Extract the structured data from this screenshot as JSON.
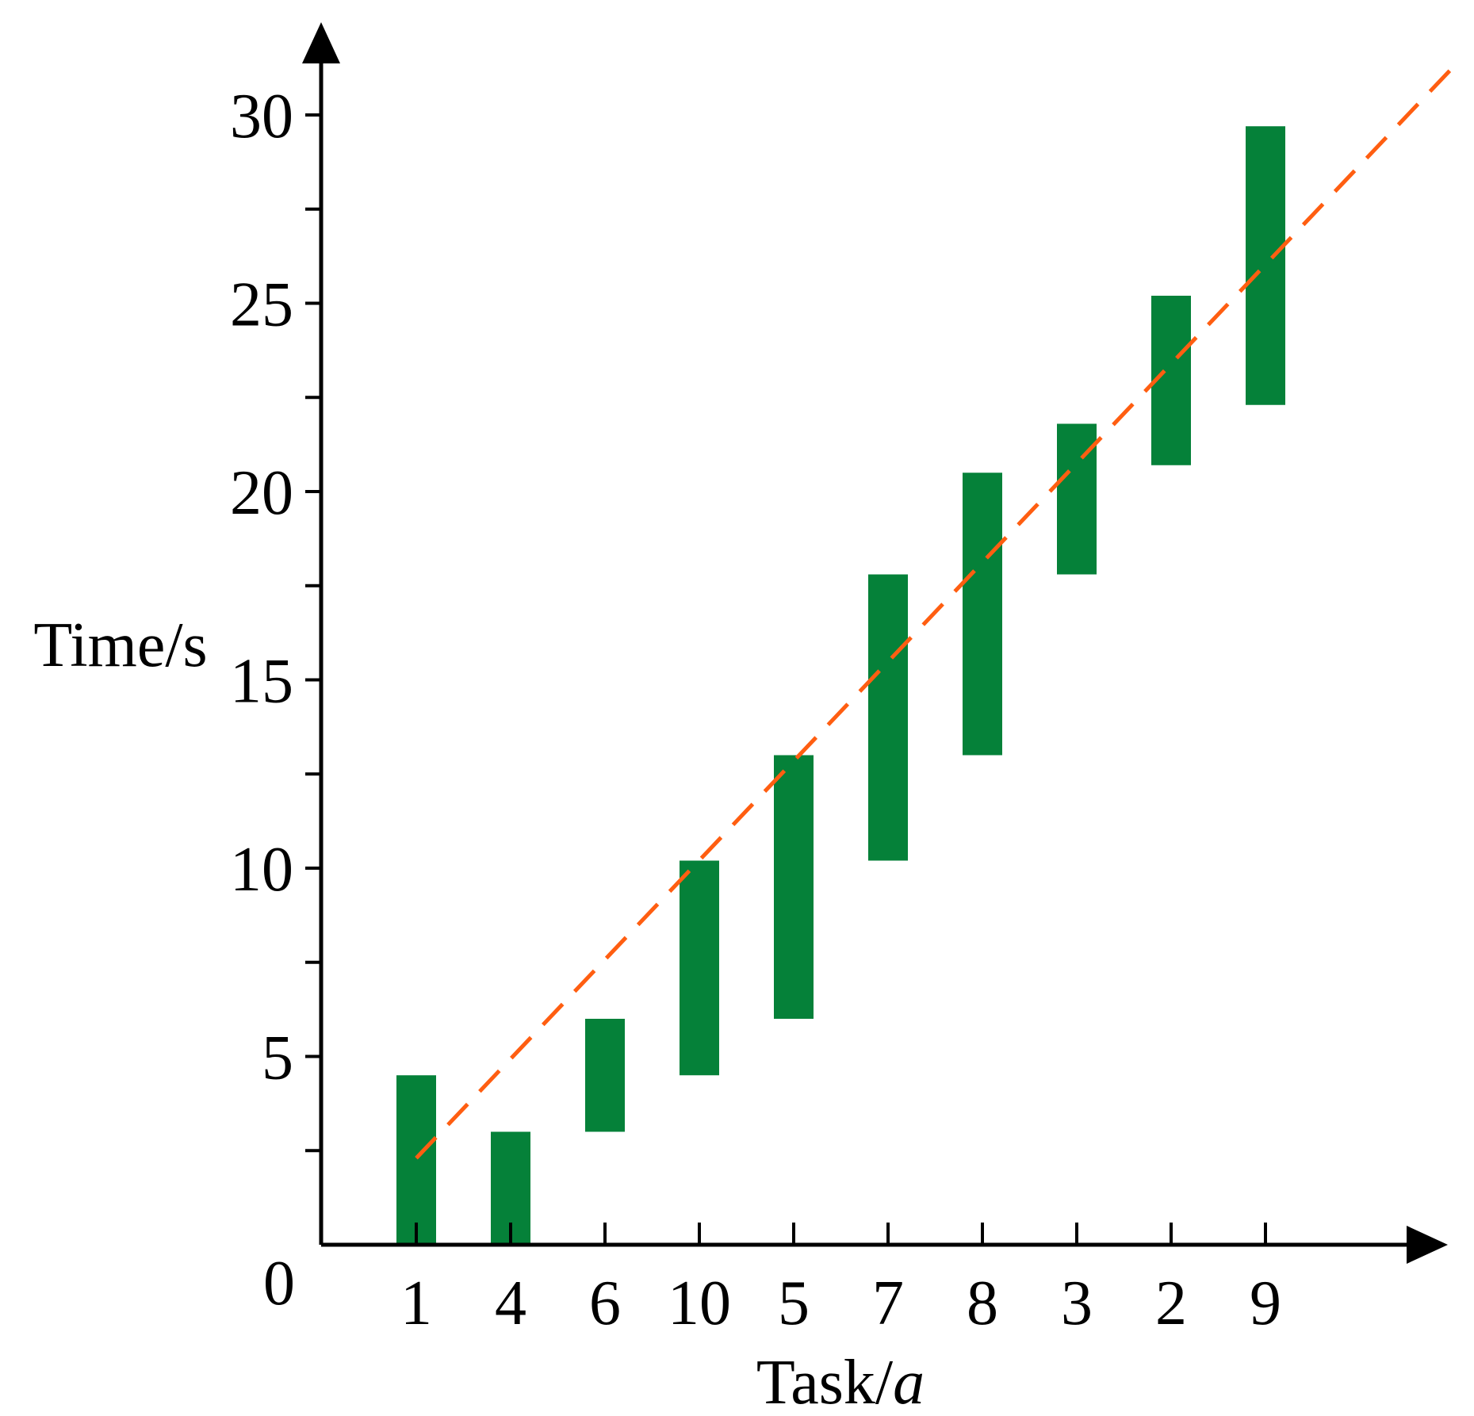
{
  "chart_data": {
    "type": "bar",
    "subtype": "floating-range",
    "categories": [
      "1",
      "4",
      "6",
      "10",
      "5",
      "7",
      "8",
      "3",
      "2",
      "9"
    ],
    "series": [
      {
        "low": [
          0,
          0,
          3.0,
          4.5,
          6.0,
          10.2,
          13.0,
          17.8,
          20.7,
          22.3
        ],
        "high": [
          4.5,
          3.0,
          6.0,
          10.2,
          13.0,
          17.8,
          20.5,
          21.8,
          25.2,
          29.7
        ],
        "color": "#058139"
      }
    ],
    "trend_line": {
      "style": "dashed",
      "color": "#FF5E11",
      "points": [
        [
          1,
          2.3
        ],
        [
          12,
          31.3
        ]
      ]
    },
    "xlabel_main": "Task/",
    "xlabel_italic": "a",
    "ylabel": "Time/s",
    "origin_label": "0",
    "ylim": [
      0,
      31
    ],
    "yticks_major": [
      5,
      10,
      15,
      20,
      25,
      30
    ],
    "yticks_minor": [
      2.5,
      7.5,
      12.5,
      17.5,
      22.5,
      27.5
    ],
    "grid": false
  }
}
